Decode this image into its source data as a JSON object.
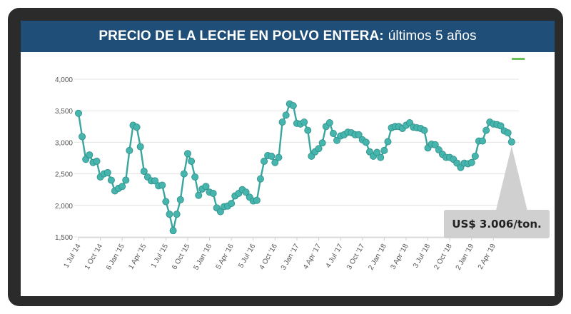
{
  "chart_data": {
    "type": "line",
    "title_bold": "PRECIO DE LA LECHE EN POLVO ENTERA:",
    "title_light": "últimos 5 años",
    "ylim": [
      1500,
      4000
    ],
    "yticks": [
      1500,
      2000,
      2500,
      3000,
      3500,
      4000
    ],
    "ytick_labels": [
      "1,500",
      "2,000",
      "2,500",
      "3,000",
      "3,500",
      "4,000"
    ],
    "xlim": [
      0,
      121
    ],
    "xtick_positions": [
      0,
      6,
      12,
      18,
      24,
      30,
      36,
      42,
      48,
      54,
      60,
      66,
      72,
      78,
      84,
      90,
      96,
      102,
      108,
      114
    ],
    "xtick_labels": [
      "1 Jul '14",
      "1 Oct '14",
      "6 Jan '15",
      "1 Apr '15",
      "1 Jul '15",
      "6 Oct '15",
      "5 Jan '16",
      "5 Apr '16",
      "5 Jul '16",
      "4 Oct '16",
      "3 Jan '17",
      "4 Apr '17",
      "4 Jul '17",
      "3 Oct '17",
      "2 Jan '18",
      "3 Apr '18",
      "3 Jul '18",
      "2 Oct '18",
      "2 Jan '19",
      "2 Apr '19"
    ],
    "grid": "horizontal",
    "line_color": "#3aa6a0",
    "marker_color": "#45b5ad",
    "values": [
      3460,
      3090,
      2730,
      2800,
      2680,
      2700,
      2450,
      2500,
      2520,
      2400,
      2230,
      2270,
      2300,
      2400,
      2870,
      3270,
      3240,
      2930,
      2540,
      2450,
      2390,
      2390,
      2310,
      2320,
      2060,
      1860,
      1600,
      1860,
      2090,
      2500,
      2820,
      2700,
      2450,
      2160,
      2260,
      2300,
      2210,
      2190,
      1960,
      1900,
      1980,
      1990,
      2030,
      2150,
      2190,
      2250,
      2210,
      2130,
      2070,
      2080,
      2420,
      2700,
      2790,
      2780,
      2680,
      2760,
      3320,
      3430,
      3610,
      3580,
      3300,
      3290,
      3320,
      3190,
      2780,
      2850,
      2900,
      2990,
      3250,
      3310,
      3140,
      3030,
      3100,
      3120,
      3160,
      3150,
      3120,
      3120,
      3040,
      3000,
      2850,
      2780,
      2840,
      2760,
      2870,
      3010,
      3230,
      3250,
      3250,
      3220,
      3270,
      3310,
      3240,
      3230,
      3220,
      3190,
      2910,
      2970,
      2960,
      2880,
      2810,
      2760,
      2760,
      2730,
      2670,
      2600,
      2670,
      2660,
      2680,
      2780,
      3020,
      3020,
      3190,
      3320,
      3290,
      3280,
      3260,
      3180,
      3150,
      3006
    ],
    "callout_text": "US$ 3.006/ton."
  }
}
